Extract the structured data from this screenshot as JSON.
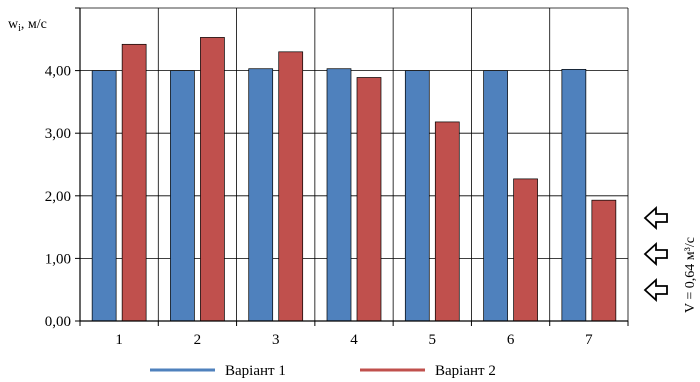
{
  "chart_data": {
    "type": "bar",
    "categories": [
      "1",
      "2",
      "3",
      "4",
      "5",
      "6",
      "7"
    ],
    "series": [
      {
        "name": "Варіант 1",
        "color": "#4f81bd",
        "values": [
          4.0,
          4.0,
          4.03,
          4.03,
          4.0,
          4.0,
          4.02
        ]
      },
      {
        "name": "Варіант 2",
        "color": "#c0504d",
        "values": [
          4.42,
          4.53,
          4.3,
          3.89,
          3.18,
          2.27,
          1.93
        ]
      }
    ],
    "ylabel_main": "w",
    "ylabel_sub": "i",
    "ylabel_unit": ", м/с",
    "ylim": [
      0,
      5
    ],
    "yticks": [
      "0,00",
      "1,00",
      "2,00",
      "3,00",
      "4,00"
    ],
    "ytick_values": [
      0,
      1,
      2,
      3,
      4
    ],
    "grid": true,
    "legend_position": "bottom",
    "side_annotation": "V = 0,64 м³/с",
    "arrow_icon": "left-outline-arrow-icon",
    "arrow_count": 3
  }
}
